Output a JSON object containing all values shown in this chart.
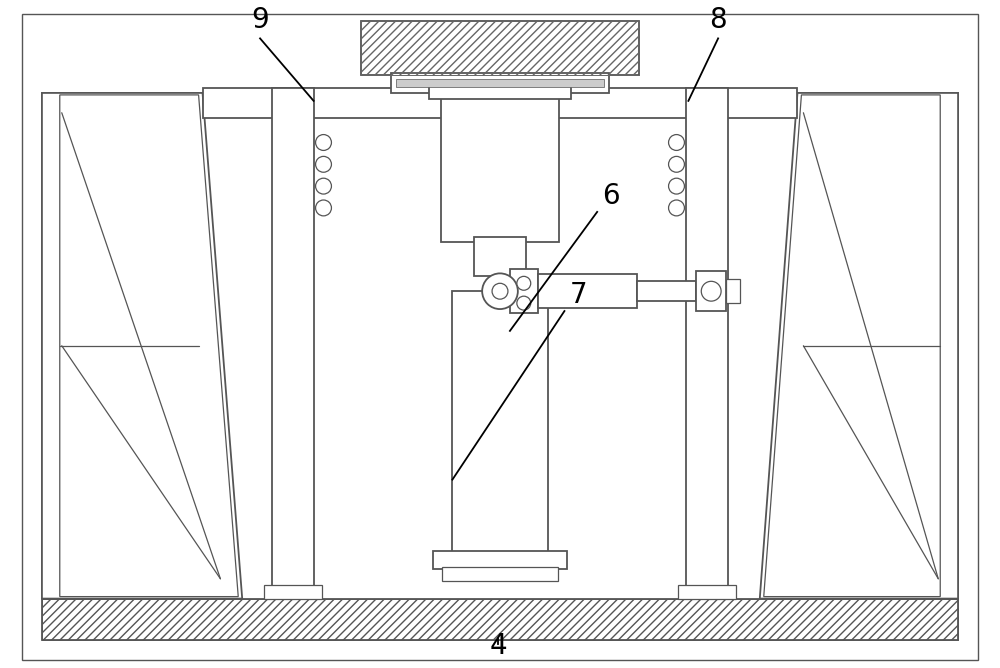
{
  "bg_color": "#ffffff",
  "line_color": "#555555",
  "label_color": "#000000",
  "figsize": [
    10.0,
    6.68
  ],
  "dpi": 100,
  "label_fontsize": 20
}
